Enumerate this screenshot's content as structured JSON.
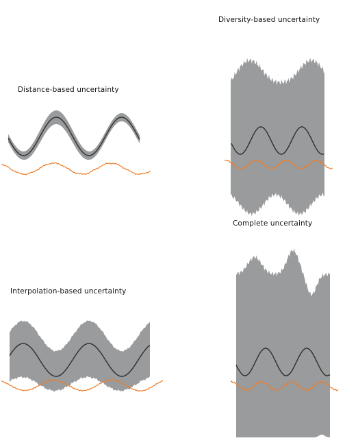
{
  "panels": [
    {
      "id": "distance",
      "title": "Distance-based uncertainty"
    },
    {
      "id": "diversity",
      "title": "Diversity-based uncertainty"
    },
    {
      "id": "interpolation",
      "title": "Interpolation-based uncertainty"
    },
    {
      "id": "complete",
      "title": "Complete uncertainty"
    }
  ],
  "colors": {
    "band": "#999b9c",
    "mean": "#2e2e2e",
    "truth": "#f07d2a",
    "background": "#ffffff"
  }
}
